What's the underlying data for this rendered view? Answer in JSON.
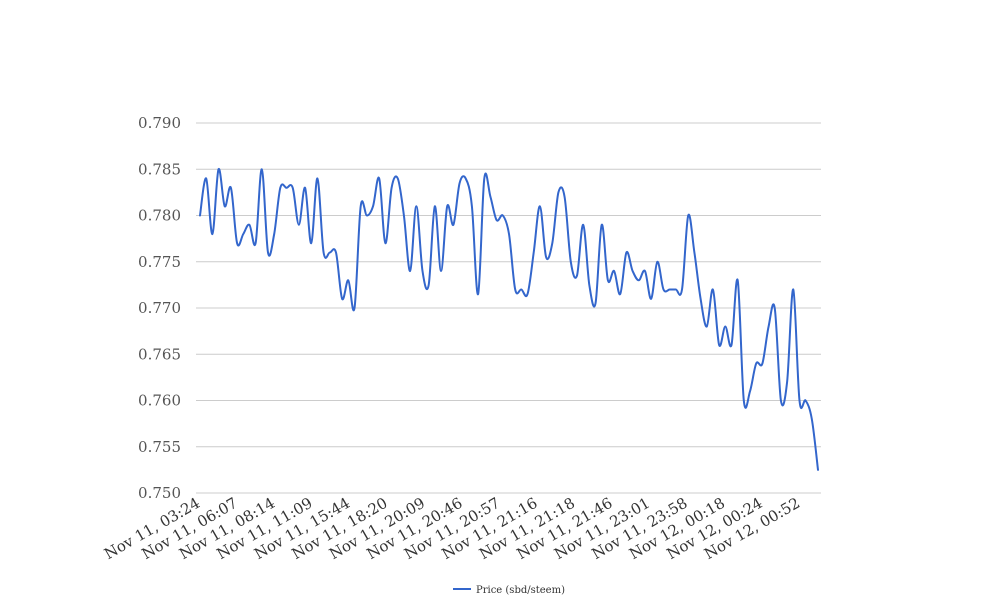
{
  "chart_data": {
    "type": "line",
    "title": "",
    "xlabel": "",
    "ylabel": "",
    "ylim": [
      0.75,
      0.79
    ],
    "y_ticks": [
      "0.750",
      "0.755",
      "0.760",
      "0.765",
      "0.770",
      "0.775",
      "0.780",
      "0.785",
      "0.790"
    ],
    "grid": true,
    "legend_position": "bottom",
    "x_tick_labels": [
      "Nov 11, 03:24",
      "Nov 11, 06:07",
      "Nov 11, 08:14",
      "Nov 11, 11:09",
      "Nov 11, 15:44",
      "Nov 11, 18:20",
      "Nov 11, 20:09",
      "Nov 11, 20:46",
      "Nov 11, 20:57",
      "Nov 11, 21:16",
      "Nov 11, 21:18",
      "Nov 11, 21:46",
      "Nov 11, 23:01",
      "Nov 11, 23:58",
      "Nov 12, 00:18",
      "Nov 12, 00:24",
      "Nov 12, 00:52"
    ],
    "series": [
      {
        "name": "Price (sbd/steem)",
        "color": "#3366cc",
        "values": [
          0.78,
          0.784,
          0.778,
          0.785,
          0.781,
          0.783,
          0.777,
          0.778,
          0.779,
          0.777,
          0.785,
          0.776,
          0.778,
          0.783,
          0.783,
          0.783,
          0.779,
          0.783,
          0.777,
          0.784,
          0.776,
          0.776,
          0.776,
          0.771,
          0.773,
          0.77,
          0.781,
          0.78,
          0.781,
          0.784,
          0.777,
          0.783,
          0.784,
          0.78,
          0.774,
          0.781,
          0.774,
          0.7725,
          0.781,
          0.774,
          0.781,
          0.779,
          0.7835,
          0.784,
          0.781,
          0.7715,
          0.784,
          0.782,
          0.7795,
          0.78,
          0.778,
          0.772,
          0.772,
          0.7715,
          0.776,
          0.781,
          0.7755,
          0.777,
          0.7825,
          0.782,
          0.775,
          0.7735,
          0.779,
          0.7725,
          0.7705,
          0.779,
          0.773,
          0.774,
          0.7715,
          0.776,
          0.774,
          0.773,
          0.774,
          0.771,
          0.775,
          0.772,
          0.772,
          0.772,
          0.772,
          0.78,
          0.776,
          0.771,
          0.768,
          0.772,
          0.766,
          0.768,
          0.766,
          0.773,
          0.76,
          0.761,
          0.764,
          0.764,
          0.768,
          0.77,
          0.76,
          0.762,
          0.772,
          0.76,
          0.76,
          0.758,
          0.7525
        ]
      }
    ]
  }
}
